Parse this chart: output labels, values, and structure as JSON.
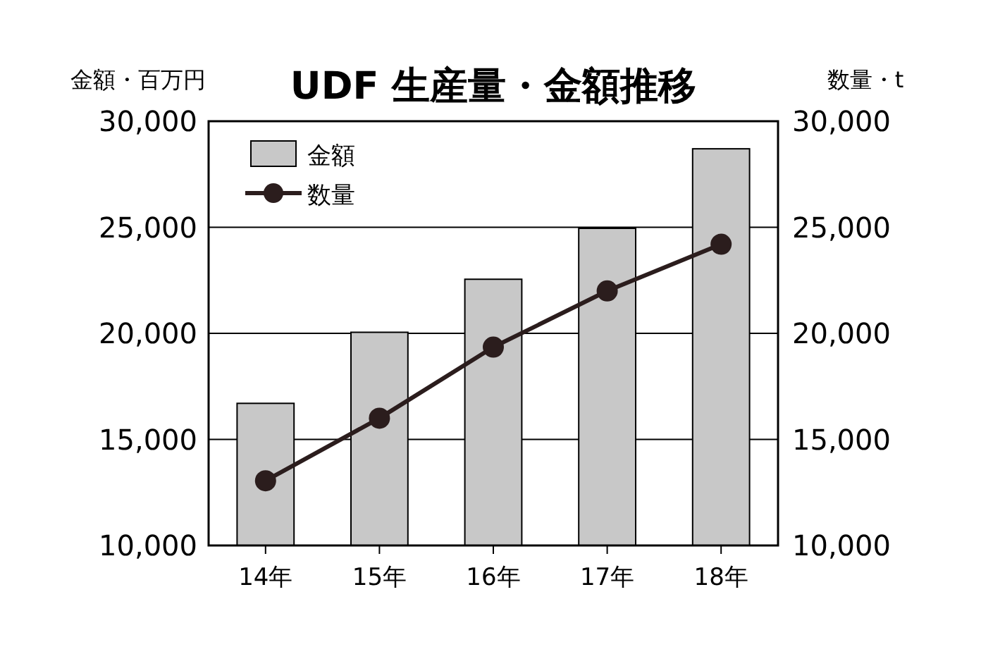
{
  "chart_data": {
    "type": "bar",
    "title": "UDF 生産量・金額推移",
    "ylabel": "金額・百万円",
    "y2label": "数量・t",
    "categories": [
      "14年",
      "15年",
      "16年",
      "17年",
      "18年"
    ],
    "series": [
      {
        "name": "金額",
        "color": "#c8c8c8",
        "values": [
          16700,
          20050,
          22550,
          24950,
          28700
        ]
      },
      {
        "name": "数量",
        "type": "line",
        "axis": "y2",
        "color": "#2b1d1d",
        "marker": "circle",
        "values": [
          13050,
          16000,
          19350,
          22000,
          24200
        ]
      }
    ],
    "ylim": [
      10000,
      30000
    ],
    "yticks": [
      {
        "value": 10000,
        "label": "10,000"
      },
      {
        "value": 15000,
        "label": "15,000"
      },
      {
        "value": 20000,
        "label": "20,000"
      },
      {
        "value": 25000,
        "label": "25,000"
      },
      {
        "value": 30000,
        "label": "30,000"
      }
    ],
    "y2lim": [
      10000,
      30000
    ],
    "y2ticks": [
      {
        "value": 10000,
        "label": "10,000"
      },
      {
        "value": 15000,
        "label": "15,000"
      },
      {
        "value": 20000,
        "label": "20,000"
      },
      {
        "value": 25000,
        "label": "25,000"
      },
      {
        "value": 30000,
        "label": "30,000"
      }
    ],
    "grid": "y",
    "legend": "top left"
  }
}
